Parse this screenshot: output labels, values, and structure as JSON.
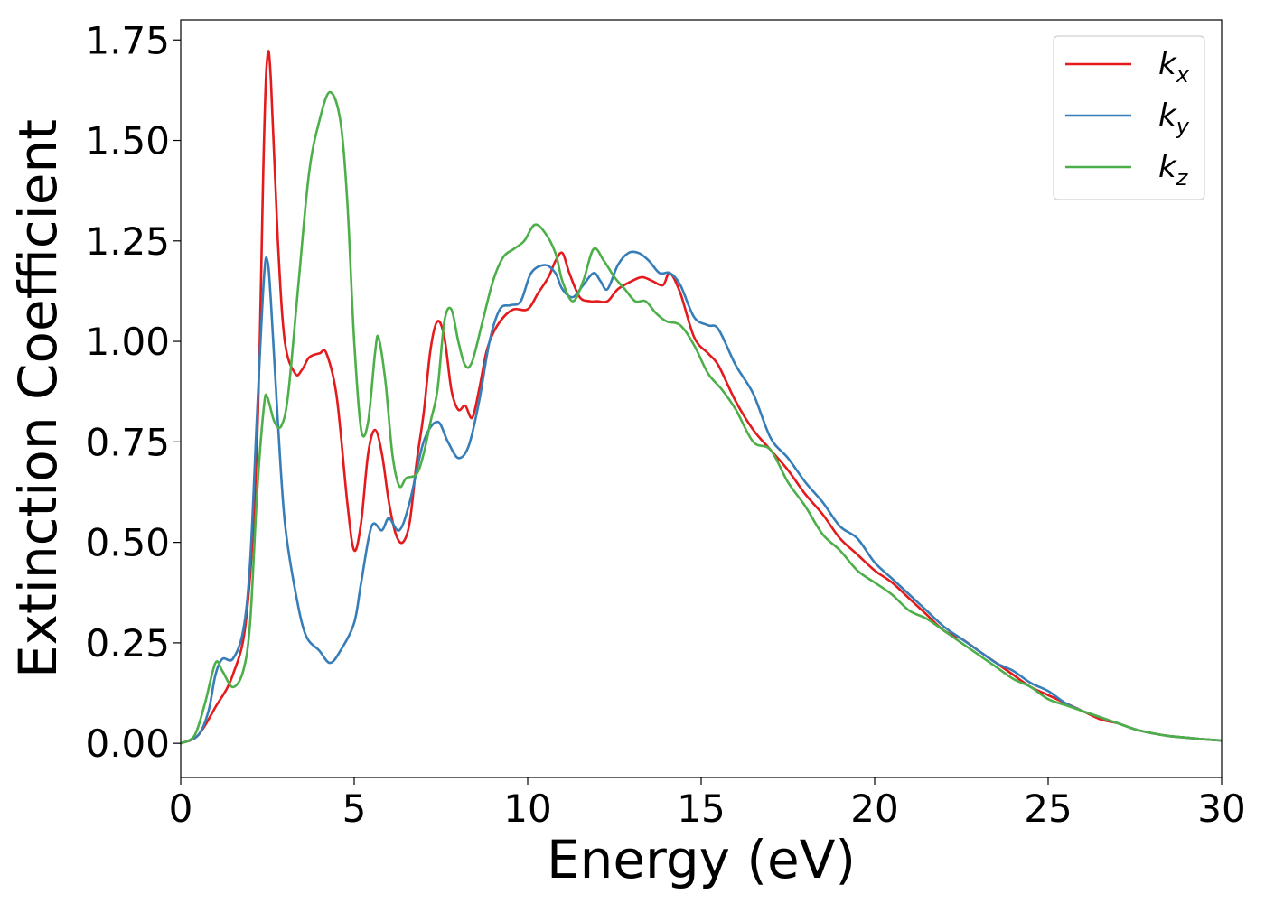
{
  "chart_data": {
    "type": "line",
    "title": "",
    "xlabel": "Energy (eV)",
    "ylabel": "Extinction Coefficient",
    "xlim": [
      0,
      30
    ],
    "ylim": [
      -0.085,
      1.8
    ],
    "grid": false,
    "legend_position": "top-right",
    "xticks": [
      0,
      5,
      10,
      15,
      20,
      25,
      30
    ],
    "xtick_labels": [
      "0",
      "5",
      "10",
      "15",
      "20",
      "25",
      "30"
    ],
    "yticks": [
      0,
      0.25,
      0.5,
      0.75,
      1.0,
      1.25,
      1.5,
      1.75
    ],
    "ytick_labels": [
      "0.00",
      "0.25",
      "0.50",
      "0.75",
      "1.00",
      "1.25",
      "1.50",
      "1.75"
    ],
    "series": [
      {
        "name": "k_x",
        "label_main": "k",
        "label_sub": "x",
        "color": "#e41a1c",
        "points": [
          [
            0,
            0
          ],
          [
            0.5,
            0.02
          ],
          [
            1.0,
            0.09
          ],
          [
            1.5,
            0.17
          ],
          [
            1.9,
            0.32
          ],
          [
            2.2,
            0.75
          ],
          [
            2.4,
            1.5
          ],
          [
            2.5,
            1.71
          ],
          [
            2.6,
            1.65
          ],
          [
            2.8,
            1.25
          ],
          [
            3.0,
            1.0
          ],
          [
            3.3,
            0.92
          ],
          [
            3.5,
            0.93
          ],
          [
            3.7,
            0.96
          ],
          [
            4.0,
            0.97
          ],
          [
            4.2,
            0.97
          ],
          [
            4.5,
            0.86
          ],
          [
            4.8,
            0.6
          ],
          [
            5.0,
            0.48
          ],
          [
            5.2,
            0.55
          ],
          [
            5.4,
            0.72
          ],
          [
            5.6,
            0.78
          ],
          [
            5.8,
            0.72
          ],
          [
            6.0,
            0.6
          ],
          [
            6.2,
            0.52
          ],
          [
            6.4,
            0.5
          ],
          [
            6.6,
            0.55
          ],
          [
            6.8,
            0.7
          ],
          [
            7.0,
            0.82
          ],
          [
            7.2,
            0.98
          ],
          [
            7.4,
            1.05
          ],
          [
            7.6,
            1.01
          ],
          [
            7.8,
            0.88
          ],
          [
            8.0,
            0.83
          ],
          [
            8.2,
            0.84
          ],
          [
            8.4,
            0.81
          ],
          [
            8.6,
            0.88
          ],
          [
            8.8,
            0.97
          ],
          [
            9.0,
            1.02
          ],
          [
            9.3,
            1.06
          ],
          [
            9.6,
            1.08
          ],
          [
            10.0,
            1.08
          ],
          [
            10.3,
            1.12
          ],
          [
            10.6,
            1.16
          ],
          [
            10.8,
            1.2
          ],
          [
            11.0,
            1.22
          ],
          [
            11.2,
            1.17
          ],
          [
            11.5,
            1.11
          ],
          [
            11.8,
            1.1
          ],
          [
            12.0,
            1.1
          ],
          [
            12.3,
            1.1
          ],
          [
            12.6,
            1.13
          ],
          [
            13.0,
            1.15
          ],
          [
            13.3,
            1.16
          ],
          [
            13.6,
            1.15
          ],
          [
            13.9,
            1.14
          ],
          [
            14.1,
            1.17
          ],
          [
            14.4,
            1.12
          ],
          [
            14.8,
            1.01
          ],
          [
            15.2,
            0.97
          ],
          [
            15.5,
            0.94
          ],
          [
            16.0,
            0.85
          ],
          [
            16.5,
            0.78
          ],
          [
            17.0,
            0.73
          ],
          [
            17.5,
            0.68
          ],
          [
            18.0,
            0.62
          ],
          [
            18.5,
            0.57
          ],
          [
            19.0,
            0.51
          ],
          [
            19.5,
            0.47
          ],
          [
            20.0,
            0.43
          ],
          [
            20.5,
            0.4
          ],
          [
            21.0,
            0.36
          ],
          [
            21.5,
            0.32
          ],
          [
            22.0,
            0.28
          ],
          [
            22.5,
            0.26
          ],
          [
            23.0,
            0.23
          ],
          [
            23.5,
            0.2
          ],
          [
            24.0,
            0.17
          ],
          [
            24.5,
            0.14
          ],
          [
            25.0,
            0.12
          ],
          [
            25.5,
            0.1
          ],
          [
            26.0,
            0.08
          ],
          [
            26.5,
            0.06
          ],
          [
            27.0,
            0.05
          ],
          [
            27.5,
            0.035
          ],
          [
            28.0,
            0.025
          ],
          [
            28.5,
            0.018
          ],
          [
            29.0,
            0.014
          ],
          [
            29.5,
            0.01
          ],
          [
            30.0,
            0.007
          ]
        ]
      },
      {
        "name": "k_y",
        "label_main": "k",
        "label_sub": "y",
        "color": "#377eb8",
        "points": [
          [
            0,
            0
          ],
          [
            0.5,
            0.02
          ],
          [
            0.8,
            0.08
          ],
          [
            1.0,
            0.17
          ],
          [
            1.2,
            0.21
          ],
          [
            1.5,
            0.21
          ],
          [
            1.8,
            0.28
          ],
          [
            2.0,
            0.45
          ],
          [
            2.2,
            0.82
          ],
          [
            2.4,
            1.16
          ],
          [
            2.5,
            1.2
          ],
          [
            2.6,
            1.1
          ],
          [
            2.8,
            0.8
          ],
          [
            3.0,
            0.55
          ],
          [
            3.3,
            0.38
          ],
          [
            3.6,
            0.27
          ],
          [
            4.0,
            0.23
          ],
          [
            4.3,
            0.2
          ],
          [
            4.6,
            0.23
          ],
          [
            5.0,
            0.3
          ],
          [
            5.2,
            0.4
          ],
          [
            5.5,
            0.54
          ],
          [
            5.8,
            0.53
          ],
          [
            6.0,
            0.56
          ],
          [
            6.3,
            0.53
          ],
          [
            6.6,
            0.6
          ],
          [
            7.0,
            0.75
          ],
          [
            7.4,
            0.8
          ],
          [
            7.7,
            0.75
          ],
          [
            8.0,
            0.71
          ],
          [
            8.3,
            0.74
          ],
          [
            8.6,
            0.85
          ],
          [
            8.9,
            1.0
          ],
          [
            9.2,
            1.08
          ],
          [
            9.5,
            1.09
          ],
          [
            9.8,
            1.1
          ],
          [
            10.1,
            1.17
          ],
          [
            10.5,
            1.19
          ],
          [
            10.8,
            1.17
          ],
          [
            11.0,
            1.13
          ],
          [
            11.3,
            1.11
          ],
          [
            11.6,
            1.14
          ],
          [
            11.9,
            1.17
          ],
          [
            12.1,
            1.15
          ],
          [
            12.3,
            1.13
          ],
          [
            12.6,
            1.19
          ],
          [
            12.9,
            1.22
          ],
          [
            13.2,
            1.22
          ],
          [
            13.5,
            1.2
          ],
          [
            13.8,
            1.17
          ],
          [
            14.1,
            1.17
          ],
          [
            14.4,
            1.14
          ],
          [
            14.8,
            1.06
          ],
          [
            15.2,
            1.04
          ],
          [
            15.5,
            1.03
          ],
          [
            16.0,
            0.94
          ],
          [
            16.5,
            0.87
          ],
          [
            17.0,
            0.76
          ],
          [
            17.5,
            0.71
          ],
          [
            18.0,
            0.65
          ],
          [
            18.5,
            0.6
          ],
          [
            19.0,
            0.54
          ],
          [
            19.5,
            0.51
          ],
          [
            20.0,
            0.45
          ],
          [
            20.5,
            0.41
          ],
          [
            21.0,
            0.37
          ],
          [
            21.5,
            0.33
          ],
          [
            22.0,
            0.29
          ],
          [
            22.5,
            0.26
          ],
          [
            23.0,
            0.23
          ],
          [
            23.5,
            0.2
          ],
          [
            24.0,
            0.18
          ],
          [
            24.5,
            0.15
          ],
          [
            25.0,
            0.13
          ],
          [
            25.5,
            0.1
          ],
          [
            26.0,
            0.08
          ],
          [
            26.5,
            0.065
          ],
          [
            27.0,
            0.05
          ],
          [
            27.5,
            0.035
          ],
          [
            28.0,
            0.025
          ],
          [
            28.5,
            0.018
          ],
          [
            29.0,
            0.014
          ],
          [
            29.5,
            0.01
          ],
          [
            30.0,
            0.007
          ]
        ]
      },
      {
        "name": "k_z",
        "label_main": "k",
        "label_sub": "z",
        "color": "#4daf4a",
        "points": [
          [
            0,
            0
          ],
          [
            0.4,
            0.02
          ],
          [
            0.7,
            0.1
          ],
          [
            1.0,
            0.2
          ],
          [
            1.2,
            0.18
          ],
          [
            1.5,
            0.14
          ],
          [
            1.8,
            0.18
          ],
          [
            2.0,
            0.3
          ],
          [
            2.2,
            0.62
          ],
          [
            2.4,
            0.84
          ],
          [
            2.5,
            0.86
          ],
          [
            2.7,
            0.8
          ],
          [
            2.9,
            0.79
          ],
          [
            3.1,
            0.87
          ],
          [
            3.4,
            1.15
          ],
          [
            3.7,
            1.42
          ],
          [
            4.0,
            1.55
          ],
          [
            4.3,
            1.62
          ],
          [
            4.6,
            1.55
          ],
          [
            4.8,
            1.35
          ],
          [
            5.0,
            1.0
          ],
          [
            5.2,
            0.78
          ],
          [
            5.4,
            0.8
          ],
          [
            5.6,
            0.97
          ],
          [
            5.7,
            1.01
          ],
          [
            5.9,
            0.9
          ],
          [
            6.1,
            0.72
          ],
          [
            6.3,
            0.64
          ],
          [
            6.5,
            0.66
          ],
          [
            6.8,
            0.67
          ],
          [
            7.0,
            0.72
          ],
          [
            7.2,
            0.8
          ],
          [
            7.4,
            0.88
          ],
          [
            7.6,
            1.05
          ],
          [
            7.8,
            1.08
          ],
          [
            8.0,
            1.0
          ],
          [
            8.2,
            0.94
          ],
          [
            8.4,
            0.95
          ],
          [
            8.7,
            1.05
          ],
          [
            9.0,
            1.15
          ],
          [
            9.3,
            1.21
          ],
          [
            9.6,
            1.23
          ],
          [
            9.9,
            1.25
          ],
          [
            10.2,
            1.29
          ],
          [
            10.5,
            1.27
          ],
          [
            10.8,
            1.22
          ],
          [
            11.0,
            1.15
          ],
          [
            11.3,
            1.1
          ],
          [
            11.6,
            1.15
          ],
          [
            11.9,
            1.23
          ],
          [
            12.2,
            1.2
          ],
          [
            12.5,
            1.16
          ],
          [
            12.8,
            1.13
          ],
          [
            13.1,
            1.1
          ],
          [
            13.4,
            1.1
          ],
          [
            13.7,
            1.07
          ],
          [
            14.0,
            1.05
          ],
          [
            14.4,
            1.04
          ],
          [
            14.8,
            0.99
          ],
          [
            15.2,
            0.92
          ],
          [
            15.6,
            0.88
          ],
          [
            16.0,
            0.83
          ],
          [
            16.5,
            0.75
          ],
          [
            17.0,
            0.73
          ],
          [
            17.5,
            0.65
          ],
          [
            18.0,
            0.59
          ],
          [
            18.5,
            0.52
          ],
          [
            19.0,
            0.48
          ],
          [
            19.5,
            0.43
          ],
          [
            20.0,
            0.4
          ],
          [
            20.5,
            0.37
          ],
          [
            21.0,
            0.33
          ],
          [
            21.5,
            0.31
          ],
          [
            22.0,
            0.28
          ],
          [
            22.5,
            0.25
          ],
          [
            23.0,
            0.22
          ],
          [
            23.5,
            0.19
          ],
          [
            24.0,
            0.16
          ],
          [
            24.5,
            0.14
          ],
          [
            25.0,
            0.11
          ],
          [
            25.5,
            0.095
          ],
          [
            26.0,
            0.08
          ],
          [
            26.5,
            0.065
          ],
          [
            27.0,
            0.05
          ],
          [
            27.5,
            0.035
          ],
          [
            28.0,
            0.025
          ],
          [
            28.5,
            0.018
          ],
          [
            29.0,
            0.014
          ],
          [
            29.5,
            0.01
          ],
          [
            30.0,
            0.007
          ]
        ]
      }
    ]
  }
}
